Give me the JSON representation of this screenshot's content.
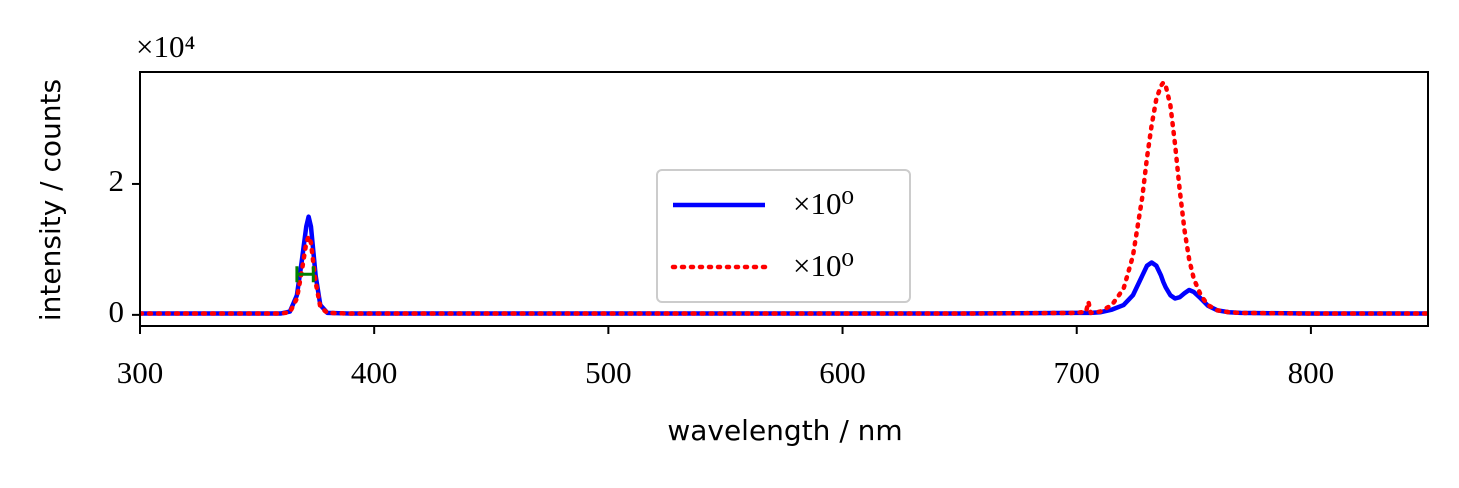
{
  "chart_data": {
    "type": "line",
    "xlabel": "wavelength / nm",
    "ylabel": "intensity / counts",
    "y_offset_label": "×10⁴",
    "x": [
      300,
      350,
      360,
      364,
      367,
      369,
      371,
      372,
      373,
      375,
      377,
      380,
      390,
      450,
      500,
      550,
      600,
      650,
      700,
      704,
      705,
      706,
      710,
      715,
      720,
      724,
      728,
      730,
      732,
      734,
      736,
      737,
      738,
      740,
      742,
      744,
      746,
      748,
      750,
      753,
      756,
      760,
      765,
      770,
      800,
      850
    ],
    "series": [
      {
        "name": "×10⁰",
        "color": "#0000ff",
        "style": "solid",
        "values": [
          0.02,
          0.02,
          0.02,
          0.05,
          0.3,
          0.8,
          1.35,
          1.5,
          1.35,
          0.6,
          0.15,
          0.03,
          0.02,
          0.02,
          0.02,
          0.02,
          0.02,
          0.02,
          0.03,
          0.03,
          0.03,
          0.03,
          0.04,
          0.08,
          0.15,
          0.3,
          0.6,
          0.75,
          0.8,
          0.75,
          0.6,
          0.5,
          0.42,
          0.3,
          0.25,
          0.27,
          0.33,
          0.38,
          0.35,
          0.25,
          0.14,
          0.07,
          0.04,
          0.03,
          0.02,
          0.02
        ]
      },
      {
        "name": "×10⁰",
        "color": "#ff0000",
        "style": "dotted",
        "values": [
          0.02,
          0.02,
          0.02,
          0.04,
          0.25,
          0.65,
          1.1,
          1.2,
          1.1,
          0.5,
          0.12,
          0.03,
          0.02,
          0.02,
          0.02,
          0.02,
          0.02,
          0.02,
          0.03,
          0.05,
          0.2,
          0.03,
          0.05,
          0.15,
          0.4,
          0.9,
          1.8,
          2.4,
          2.9,
          3.3,
          3.5,
          3.55,
          3.5,
          3.2,
          2.6,
          1.9,
          1.3,
          0.85,
          0.55,
          0.3,
          0.15,
          0.07,
          0.04,
          0.03,
          0.02,
          0.02
        ]
      }
    ],
    "errorbar": {
      "x": 370.5,
      "y": 0.62,
      "xerr": 3.5,
      "color": "#008000"
    },
    "xlim": [
      300,
      850
    ],
    "ylim": [
      -0.17,
      3.71
    ],
    "xticks": [
      300,
      400,
      500,
      600,
      700,
      800
    ],
    "yticks": [
      0,
      2
    ],
    "legend": "center"
  }
}
